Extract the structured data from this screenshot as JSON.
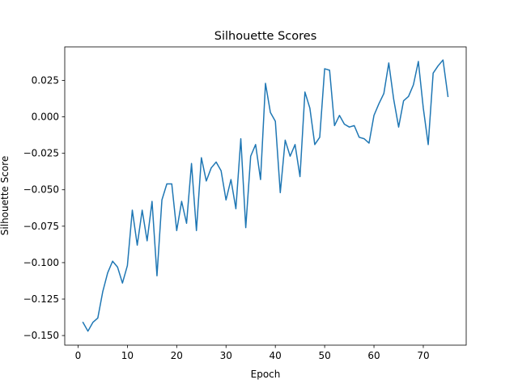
{
  "chart_data": {
    "type": "line",
    "title": "Silhouette Scores",
    "xlabel": "Epoch",
    "ylabel": "Silhouette Score",
    "xlim": [
      -2.7,
      78.7
    ],
    "ylim": [
      -0.1566,
      0.048
    ],
    "xticks": [
      0,
      10,
      20,
      30,
      40,
      50,
      60,
      70
    ],
    "xtick_labels": [
      "0",
      "10",
      "20",
      "30",
      "40",
      "50",
      "60",
      "70"
    ],
    "yticks": [
      -0.15,
      -0.125,
      -0.1,
      -0.075,
      -0.05,
      -0.025,
      0.0,
      0.025
    ],
    "ytick_labels": [
      "−0.150",
      "−0.125",
      "−0.100",
      "−0.075",
      "−0.050",
      "−0.025",
      "0.000",
      "0.025"
    ],
    "grid": false,
    "series": [
      {
        "color": "#1f77b4",
        "x": [
          1,
          2,
          3,
          4,
          5,
          6,
          7,
          8,
          9,
          10,
          11,
          12,
          13,
          14,
          15,
          16,
          17,
          18,
          19,
          20,
          21,
          22,
          23,
          24,
          25,
          26,
          27,
          28,
          29,
          30,
          31,
          32,
          33,
          34,
          35,
          36,
          37,
          38,
          39,
          40,
          41,
          42,
          43,
          44,
          45,
          46,
          47,
          48,
          49,
          50,
          51,
          52,
          53,
          54,
          55,
          56,
          57,
          58,
          59,
          60,
          61,
          62,
          63,
          64,
          65,
          66,
          67,
          68,
          69,
          70,
          71,
          72,
          73,
          74,
          75
        ],
        "values": [
          -0.141,
          -0.147,
          -0.141,
          -0.138,
          -0.12,
          -0.107,
          -0.099,
          -0.103,
          -0.114,
          -0.102,
          -0.064,
          -0.088,
          -0.064,
          -0.085,
          -0.058,
          -0.109,
          -0.057,
          -0.046,
          -0.046,
          -0.078,
          -0.058,
          -0.073,
          -0.032,
          -0.078,
          -0.028,
          -0.044,
          -0.035,
          -0.031,
          -0.037,
          -0.057,
          -0.043,
          -0.063,
          -0.015,
          -0.076,
          -0.027,
          -0.019,
          -0.043,
          0.023,
          0.003,
          -0.003,
          -0.052,
          -0.016,
          -0.027,
          -0.019,
          -0.041,
          0.017,
          0.006,
          -0.019,
          -0.014,
          0.033,
          0.032,
          -0.006,
          0.001,
          -0.005,
          -0.007,
          -0.006,
          -0.014,
          -0.015,
          -0.018,
          0.001,
          0.009,
          0.016,
          0.037,
          0.012,
          -0.007,
          0.011,
          0.014,
          0.022,
          0.038,
          0.006,
          -0.019,
          0.03,
          0.035,
          0.039,
          0.014
        ]
      }
    ]
  }
}
